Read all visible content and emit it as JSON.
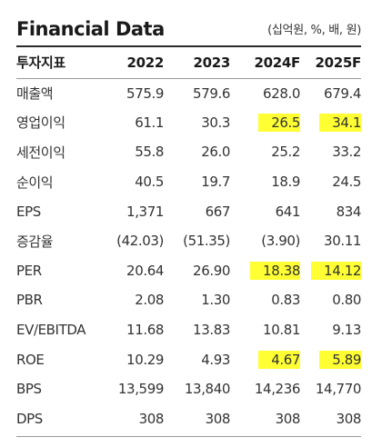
{
  "header": {
    "title": "Financial Data",
    "unit": "(십억원, %, 배, 원)"
  },
  "table": {
    "columns": [
      "투자지표",
      "2022",
      "2023",
      "2024F",
      "2025F"
    ],
    "rows": [
      {
        "label": "매출액",
        "values": [
          "575.9",
          "579.6",
          "628.0",
          "679.4"
        ],
        "highlight": [
          false,
          false,
          false,
          false
        ]
      },
      {
        "label": "영업이익",
        "values": [
          "61.1",
          "30.3",
          "26.5",
          "34.1"
        ],
        "highlight": [
          false,
          false,
          true,
          true
        ]
      },
      {
        "label": "세전이익",
        "values": [
          "55.8",
          "26.0",
          "25.2",
          "33.2"
        ],
        "highlight": [
          false,
          false,
          false,
          false
        ]
      },
      {
        "label": "순이익",
        "values": [
          "40.5",
          "19.7",
          "18.9",
          "24.5"
        ],
        "highlight": [
          false,
          false,
          false,
          false
        ]
      },
      {
        "label": "EPS",
        "values": [
          "1,371",
          "667",
          "641",
          "834"
        ],
        "highlight": [
          false,
          false,
          false,
          false
        ]
      },
      {
        "label": "증감율",
        "values": [
          "(42.03)",
          "(51.35)",
          "(3.90)",
          "30.11"
        ],
        "highlight": [
          false,
          false,
          false,
          false
        ]
      },
      {
        "label": "PER",
        "values": [
          "20.64",
          "26.90",
          "18.38",
          "14.12"
        ],
        "highlight": [
          false,
          false,
          true,
          true
        ]
      },
      {
        "label": "PBR",
        "values": [
          "2.08",
          "1.30",
          "0.83",
          "0.80"
        ],
        "highlight": [
          false,
          false,
          false,
          false
        ]
      },
      {
        "label": "EV/EBITDA",
        "values": [
          "11.68",
          "13.83",
          "10.81",
          "9.13"
        ],
        "highlight": [
          false,
          false,
          false,
          false
        ]
      },
      {
        "label": "ROE",
        "values": [
          "10.29",
          "4.93",
          "4.67",
          "5.89"
        ],
        "highlight": [
          false,
          false,
          true,
          true
        ]
      },
      {
        "label": "BPS",
        "values": [
          "13,599",
          "13,840",
          "14,236",
          "14,770"
        ],
        "highlight": [
          false,
          false,
          false,
          false
        ]
      },
      {
        "label": "DPS",
        "values": [
          "308",
          "308",
          "308",
          "308"
        ],
        "highlight": [
          false,
          false,
          false,
          false
        ]
      }
    ]
  },
  "colors": {
    "highlight": "#ffff33",
    "rule": "#2b2b2b",
    "text": "#333333"
  }
}
